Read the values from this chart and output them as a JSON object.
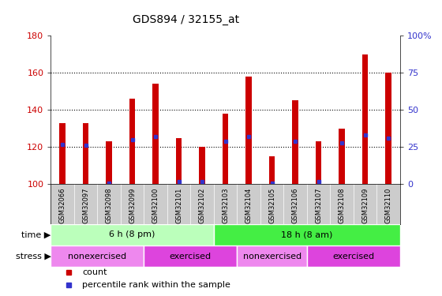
{
  "title": "GDS894 / 32155_at",
  "samples": [
    "GSM32066",
    "GSM32097",
    "GSM32098",
    "GSM32099",
    "GSM32100",
    "GSM32101",
    "GSM32102",
    "GSM32103",
    "GSM32104",
    "GSM32105",
    "GSM32106",
    "GSM32107",
    "GSM32108",
    "GSM32109",
    "GSM32110"
  ],
  "counts": [
    133,
    133,
    123,
    146,
    154,
    125,
    120,
    138,
    158,
    115,
    145,
    123,
    130,
    170,
    160
  ],
  "percentile_ranks": [
    27,
    26,
    1,
    30,
    32,
    2,
    2,
    29,
    32,
    1,
    29,
    2,
    28,
    33,
    31
  ],
  "ylim_left": [
    100,
    180
  ],
  "ylim_right": [
    0,
    100
  ],
  "yticks_left": [
    100,
    120,
    140,
    160,
    180
  ],
  "yticks_right": [
    0,
    25,
    50,
    75,
    100
  ],
  "ytick_labels_right": [
    "0",
    "25",
    "50",
    "75",
    "100%"
  ],
  "bar_color": "#cc0000",
  "dot_color": "#3333cc",
  "grid_color": "#000000",
  "time_groups": [
    {
      "label": "6 h (8 pm)",
      "start": 0,
      "end": 7,
      "color": "#bbffbb"
    },
    {
      "label": "18 h (8 am)",
      "start": 7,
      "end": 15,
      "color": "#44ee44"
    }
  ],
  "stress_groups": [
    {
      "label": "nonexercised",
      "start": 0,
      "end": 4,
      "color": "#ee88ee"
    },
    {
      "label": "exercised",
      "start": 4,
      "end": 8,
      "color": "#dd44dd"
    },
    {
      "label": "nonexercised",
      "start": 8,
      "end": 11,
      "color": "#ee88ee"
    },
    {
      "label": "exercised",
      "start": 11,
      "end": 15,
      "color": "#dd44dd"
    }
  ],
  "legend_items": [
    {
      "label": "count",
      "color": "#cc0000"
    },
    {
      "label": "percentile rank within the sample",
      "color": "#3333cc"
    }
  ],
  "base_value": 100,
  "bar_width": 0.25,
  "ax_bg_color": "#ffffff",
  "tick_label_color_left": "#cc0000",
  "tick_label_color_right": "#3333cc",
  "label_area_color": "#cccccc",
  "grid_yticks": [
    120,
    140,
    160
  ]
}
